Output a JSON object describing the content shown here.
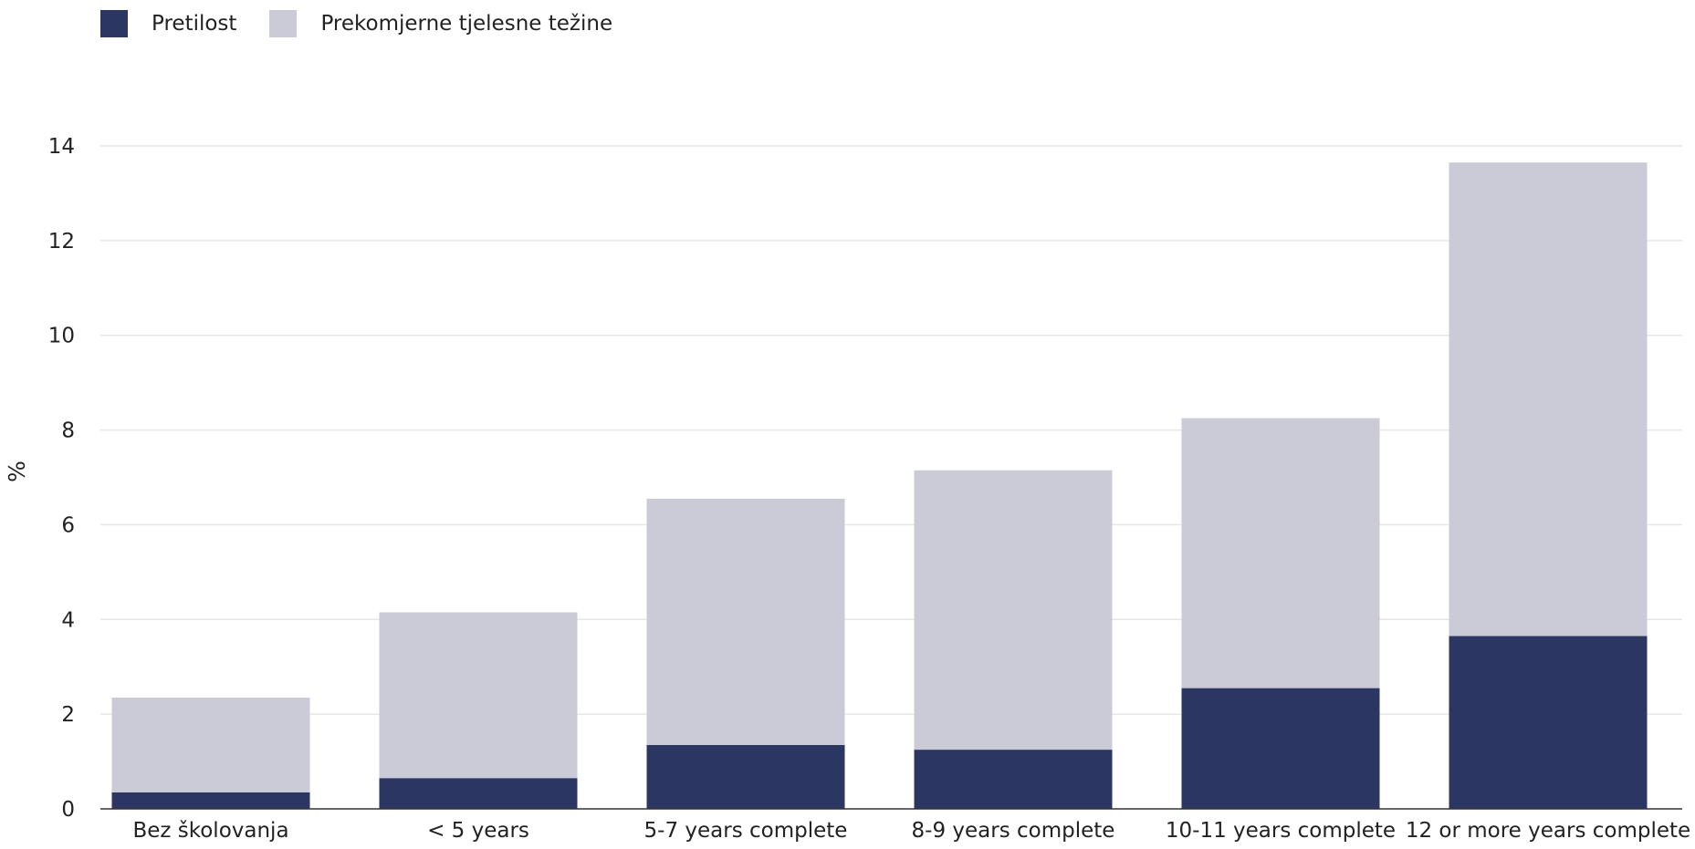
{
  "chart_data": {
    "type": "bar",
    "stacked": true,
    "title": "",
    "xlabel": "",
    "ylabel": "%",
    "ylim": [
      0,
      14
    ],
    "yticks": [
      0,
      2,
      4,
      6,
      8,
      10,
      12,
      14
    ],
    "grid": true,
    "legend_position": "top-left",
    "categories": [
      "Bez školovanja",
      "< 5 years",
      "5-7 years complete",
      "8-9 years complete",
      "10-11 years complete",
      "12 or more years complete"
    ],
    "series": [
      {
        "name": "Pretilost",
        "color": "#2b3663",
        "values": [
          0.35,
          0.65,
          1.35,
          1.25,
          2.55,
          3.65
        ]
      },
      {
        "name": "Prekomjerne tjelesne težine",
        "color": "#cacbd7",
        "values": [
          2.0,
          3.5,
          5.2,
          5.9,
          5.7,
          10.0
        ]
      }
    ]
  }
}
